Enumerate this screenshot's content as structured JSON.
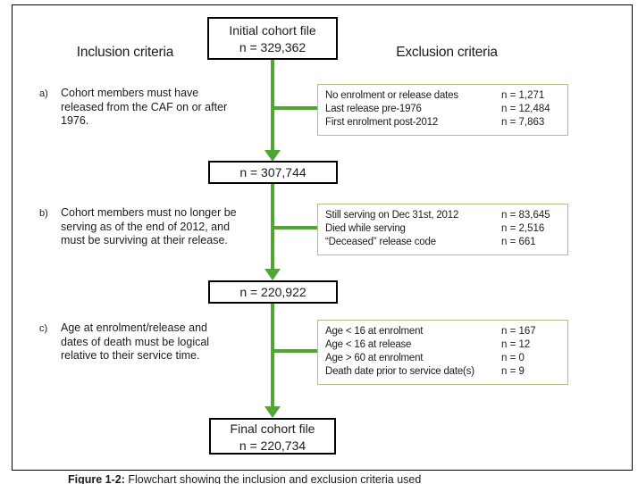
{
  "headers": {
    "inclusion": "Inclusion criteria",
    "exclusion": "Exclusion criteria"
  },
  "flow": {
    "initial_box": {
      "title": "Initial cohort file",
      "n": "n = 329,362"
    },
    "mid_box_1": {
      "n": "n = 307,744"
    },
    "mid_box_2": {
      "n": "n = 220,922"
    },
    "final_box": {
      "title": "Final cohort file",
      "n": "n = 220,734"
    }
  },
  "inclusion_items": [
    {
      "marker": "a)",
      "text": "Cohort members must have released from the CAF on or after 1976."
    },
    {
      "marker": "b)",
      "text": "Cohort members must no longer be serving as of the end of 2012, and must be surviving at their release."
    },
    {
      "marker": "c)",
      "text": "Age at enrolment/release and dates of death must be logical relative to their service time."
    }
  ],
  "exclusion_boxes": [
    {
      "rows": [
        {
          "label": "No enrolment or release dates",
          "value": "n = 1,271"
        },
        {
          "label": "Last release pre-1976",
          "value": "n = 12,484"
        },
        {
          "label": "First enrolment post-2012",
          "value": "n = 7,863"
        }
      ]
    },
    {
      "rows": [
        {
          "label": "Still serving on Dec 31st, 2012",
          "value": "n = 83,645"
        },
        {
          "label": "Died while serving",
          "value": "n = 2,516"
        },
        {
          "label": "“Deceased” release code",
          "value": "n = 661"
        }
      ]
    },
    {
      "rows": [
        {
          "label": "Age < 16 at enrolment",
          "value": "n = 167"
        },
        {
          "label": "Age < 16 at release",
          "value": "n = 12"
        },
        {
          "label": "Age > 60 at enrolment",
          "value": "n = 0"
        },
        {
          "label": "Death date prior to service date(s)",
          "value": "n = 9"
        }
      ]
    }
  ],
  "caption": {
    "label": "Figure 1-2:",
    "text": "Flowchart showing the inclusion and exclusion criteria used"
  },
  "colors": {
    "arrow-green": "#4EA72E",
    "exclusion-border": "#A9C47F",
    "box-border": "#000000"
  }
}
